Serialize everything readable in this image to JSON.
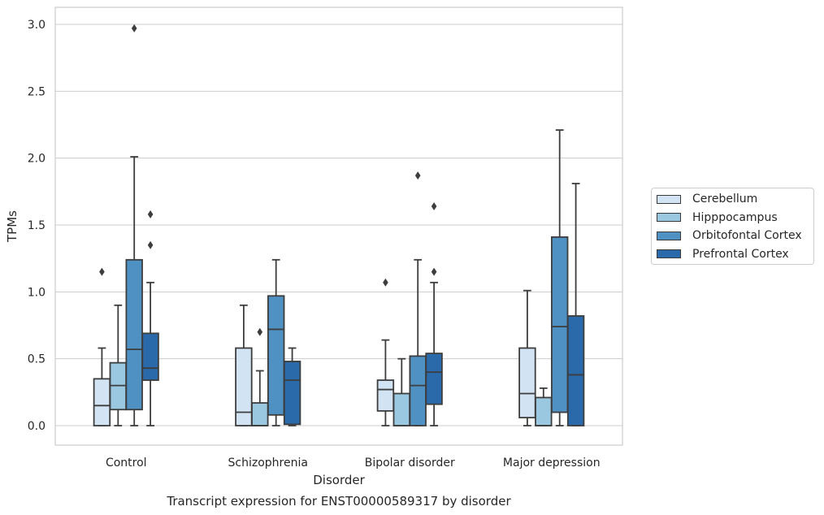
{
  "chart_data": {
    "type": "box",
    "title": "",
    "xlabel": "Disorder",
    "ylabel": "TPMs",
    "caption": "Transcript expression for ENST00000589317 by disorder",
    "ylim": [
      -0.14,
      3.13
    ],
    "yticks": [
      "0.0",
      "0.5",
      "1.0",
      "1.5",
      "2.0",
      "2.5",
      "3.0"
    ],
    "grid": "horizontal",
    "legend_position": "right",
    "categories": [
      "Control",
      "Schizophrenia",
      "Bipolar disorder",
      "Major depression"
    ],
    "series": [
      {
        "name": "Cerebellum",
        "color": "#d2e3f3",
        "boxes": [
          {
            "whislo": 0.0,
            "q1": 0.0,
            "med": 0.15,
            "q3": 0.35,
            "whishi": 0.58,
            "fliers": [
              1.15
            ]
          },
          {
            "whislo": 0.0,
            "q1": 0.0,
            "med": 0.1,
            "q3": 0.58,
            "whishi": 0.9,
            "fliers": []
          },
          {
            "whislo": 0.0,
            "q1": 0.11,
            "med": 0.27,
            "q3": 0.34,
            "whishi": 0.64,
            "fliers": [
              1.07
            ]
          },
          {
            "whislo": 0.0,
            "q1": 0.06,
            "med": 0.24,
            "q3": 0.58,
            "whishi": 1.01,
            "fliers": []
          }
        ]
      },
      {
        "name": "Hipppocampus",
        "color": "#9ac8e0",
        "boxes": [
          {
            "whislo": 0.0,
            "q1": 0.12,
            "med": 0.3,
            "q3": 0.47,
            "whishi": 0.9,
            "fliers": []
          },
          {
            "whislo": 0.0,
            "q1": 0.0,
            "med": 0.0,
            "q3": 0.17,
            "whishi": 0.41,
            "fliers": [
              0.7
            ]
          },
          {
            "whislo": 0.0,
            "q1": 0.0,
            "med": 0.0,
            "q3": 0.24,
            "whishi": 0.5,
            "fliers": []
          },
          {
            "whislo": 0.0,
            "q1": 0.0,
            "med": 0.0,
            "q3": 0.21,
            "whishi": 0.28,
            "fliers": []
          }
        ]
      },
      {
        "name": "Orbitofontal Cortex",
        "color": "#4f91c3",
        "boxes": [
          {
            "whislo": 0.0,
            "q1": 0.12,
            "med": 0.57,
            "q3": 1.24,
            "whishi": 2.01,
            "fliers": [
              2.97
            ]
          },
          {
            "whislo": 0.0,
            "q1": 0.08,
            "med": 0.72,
            "q3": 0.97,
            "whishi": 1.24,
            "fliers": []
          },
          {
            "whislo": 0.0,
            "q1": 0.0,
            "med": 0.3,
            "q3": 0.52,
            "whishi": 1.24,
            "fliers": [
              1.87
            ]
          },
          {
            "whislo": 0.0,
            "q1": 0.1,
            "med": 0.74,
            "q3": 1.41,
            "whishi": 2.21,
            "fliers": []
          }
        ]
      },
      {
        "name": "Prefrontal Cortex",
        "color": "#2a6aab",
        "boxes": [
          {
            "whislo": 0.0,
            "q1": 0.34,
            "med": 0.43,
            "q3": 0.69,
            "whishi": 1.07,
            "fliers": [
              1.35,
              1.58
            ]
          },
          {
            "whislo": 0.0,
            "q1": 0.01,
            "med": 0.34,
            "q3": 0.48,
            "whishi": 0.58,
            "fliers": []
          },
          {
            "whislo": 0.0,
            "q1": 0.16,
            "med": 0.4,
            "q3": 0.54,
            "whishi": 1.07,
            "fliers": [
              1.15,
              1.64
            ]
          },
          {
            "whislo": 0.0,
            "q1": 0.0,
            "med": 0.38,
            "q3": 0.82,
            "whishi": 1.81,
            "fliers": []
          }
        ]
      }
    ]
  }
}
